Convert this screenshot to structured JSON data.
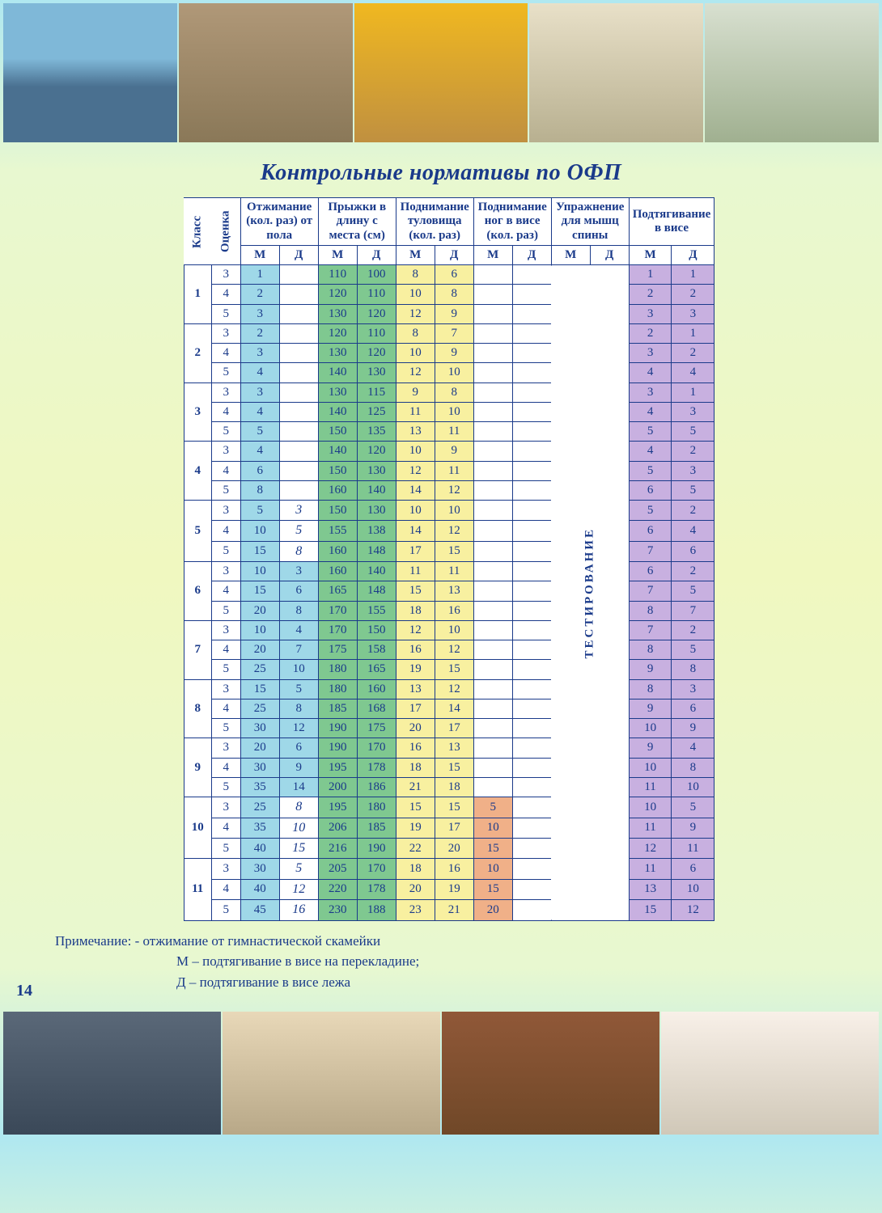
{
  "title": "Контрольные нормативы по ОФП",
  "page_number": "14",
  "headers": {
    "class": "Класс",
    "grade": "Оценка",
    "pushups": "Отжимание (кол. раз) от пола",
    "longjump": "Прыжки в длину с места (см)",
    "situps": "Поднимание туловища (кол. раз)",
    "legraise": "Поднимание ног в висе (кол. раз)",
    "back": "Упражнение для мышц спины",
    "pullups": "Подтягивание в висе",
    "m": "М",
    "d": "Д",
    "testing": "ТЕСТИРОВАНИЕ"
  },
  "note": {
    "line1": "Примечание: - отжимание от гимнастической скамейки",
    "line2": "М – подтягивание в висе на перекладине;",
    "line3": "Д – подтягивание в висе лежа"
  },
  "colors": {
    "border": "#1a3a8a",
    "blue": "#9fd8e8",
    "green": "#7fc890",
    "yellow": "#f8f0a0",
    "orange": "#f0b088",
    "purple": "#c8b0e0"
  },
  "classes": [
    {
      "class": "1",
      "rows": [
        {
          "g": "3",
          "pu_m": "1",
          "pu_d": "",
          "lj_m": "110",
          "lj_d": "100",
          "su_m": "8",
          "su_d": "6",
          "lr_m": "",
          "lr_d": "",
          "pl_m": "1",
          "pl_d": "1"
        },
        {
          "g": "4",
          "pu_m": "2",
          "pu_d": "",
          "lj_m": "120",
          "lj_d": "110",
          "su_m": "10",
          "su_d": "8",
          "lr_m": "",
          "lr_d": "",
          "pl_m": "2",
          "pl_d": "2"
        },
        {
          "g": "5",
          "pu_m": "3",
          "pu_d": "",
          "lj_m": "130",
          "lj_d": "120",
          "su_m": "12",
          "su_d": "9",
          "lr_m": "",
          "lr_d": "",
          "pl_m": "3",
          "pl_d": "3"
        }
      ]
    },
    {
      "class": "2",
      "rows": [
        {
          "g": "3",
          "pu_m": "2",
          "pu_d": "",
          "lj_m": "120",
          "lj_d": "110",
          "su_m": "8",
          "su_d": "7",
          "lr_m": "",
          "lr_d": "",
          "pl_m": "2",
          "pl_d": "1"
        },
        {
          "g": "4",
          "pu_m": "3",
          "pu_d": "",
          "lj_m": "130",
          "lj_d": "120",
          "su_m": "10",
          "su_d": "9",
          "lr_m": "",
          "lr_d": "",
          "pl_m": "3",
          "pl_d": "2"
        },
        {
          "g": "5",
          "pu_m": "4",
          "pu_d": "",
          "lj_m": "140",
          "lj_d": "130",
          "su_m": "12",
          "su_d": "10",
          "lr_m": "",
          "lr_d": "",
          "pl_m": "4",
          "pl_d": "4"
        }
      ]
    },
    {
      "class": "3",
      "rows": [
        {
          "g": "3",
          "pu_m": "3",
          "pu_d": "",
          "lj_m": "130",
          "lj_d": "115",
          "su_m": "9",
          "su_d": "8",
          "lr_m": "",
          "lr_d": "",
          "pl_m": "3",
          "pl_d": "1"
        },
        {
          "g": "4",
          "pu_m": "4",
          "pu_d": "",
          "lj_m": "140",
          "lj_d": "125",
          "su_m": "11",
          "su_d": "10",
          "lr_m": "",
          "lr_d": "",
          "pl_m": "4",
          "pl_d": "3"
        },
        {
          "g": "5",
          "pu_m": "5",
          "pu_d": "",
          "lj_m": "150",
          "lj_d": "135",
          "su_m": "13",
          "su_d": "11",
          "lr_m": "",
          "lr_d": "",
          "pl_m": "5",
          "pl_d": "5"
        }
      ]
    },
    {
      "class": "4",
      "rows": [
        {
          "g": "3",
          "pu_m": "4",
          "pu_d": "",
          "lj_m": "140",
          "lj_d": "120",
          "su_m": "10",
          "su_d": "9",
          "lr_m": "",
          "lr_d": "",
          "pl_m": "4",
          "pl_d": "2"
        },
        {
          "g": "4",
          "pu_m": "6",
          "pu_d": "",
          "lj_m": "150",
          "lj_d": "130",
          "su_m": "12",
          "su_d": "11",
          "lr_m": "",
          "lr_d": "",
          "pl_m": "5",
          "pl_d": "3"
        },
        {
          "g": "5",
          "pu_m": "8",
          "pu_d": "",
          "lj_m": "160",
          "lj_d": "140",
          "su_m": "14",
          "su_d": "12",
          "lr_m": "",
          "lr_d": "",
          "pl_m": "6",
          "pl_d": "5"
        }
      ]
    },
    {
      "class": "5",
      "rows": [
        {
          "g": "3",
          "pu_m": "5",
          "pu_d": "3",
          "pu_d_hand": true,
          "lj_m": "150",
          "lj_d": "130",
          "su_m": "10",
          "su_d": "10",
          "lr_m": "",
          "lr_d": "",
          "pl_m": "5",
          "pl_d": "2"
        },
        {
          "g": "4",
          "pu_m": "10",
          "pu_d": "5",
          "pu_d_hand": true,
          "lj_m": "155",
          "lj_d": "138",
          "su_m": "14",
          "su_d": "12",
          "lr_m": "",
          "lr_d": "",
          "pl_m": "6",
          "pl_d": "4"
        },
        {
          "g": "5",
          "pu_m": "15",
          "pu_d": "8",
          "pu_d_hand": true,
          "lj_m": "160",
          "lj_d": "148",
          "su_m": "17",
          "su_d": "15",
          "lr_m": "",
          "lr_d": "",
          "pl_m": "7",
          "pl_d": "6"
        }
      ]
    },
    {
      "class": "6",
      "rows": [
        {
          "g": "3",
          "pu_m": "10",
          "pu_d": "3",
          "lj_m": "160",
          "lj_d": "140",
          "su_m": "11",
          "su_d": "11",
          "lr_m": "",
          "lr_d": "",
          "pl_m": "6",
          "pl_d": "2"
        },
        {
          "g": "4",
          "pu_m": "15",
          "pu_d": "6",
          "lj_m": "165",
          "lj_d": "148",
          "su_m": "15",
          "su_d": "13",
          "lr_m": "",
          "lr_d": "",
          "pl_m": "7",
          "pl_d": "5"
        },
        {
          "g": "5",
          "pu_m": "20",
          "pu_d": "8",
          "lj_m": "170",
          "lj_d": "155",
          "su_m": "18",
          "su_d": "16",
          "lr_m": "",
          "lr_d": "",
          "pl_m": "8",
          "pl_d": "7"
        }
      ]
    },
    {
      "class": "7",
      "rows": [
        {
          "g": "3",
          "pu_m": "10",
          "pu_d": "4",
          "lj_m": "170",
          "lj_d": "150",
          "su_m": "12",
          "su_d": "10",
          "lr_m": "",
          "lr_d": "",
          "pl_m": "7",
          "pl_d": "2"
        },
        {
          "g": "4",
          "pu_m": "20",
          "pu_d": "7",
          "lj_m": "175",
          "lj_d": "158",
          "su_m": "16",
          "su_d": "12",
          "lr_m": "",
          "lr_d": "",
          "pl_m": "8",
          "pl_d": "5"
        },
        {
          "g": "5",
          "pu_m": "25",
          "pu_d": "10",
          "lj_m": "180",
          "lj_d": "165",
          "su_m": "19",
          "su_d": "15",
          "lr_m": "",
          "lr_d": "",
          "pl_m": "9",
          "pl_d": "8"
        }
      ]
    },
    {
      "class": "8",
      "rows": [
        {
          "g": "3",
          "pu_m": "15",
          "pu_d": "5",
          "lj_m": "180",
          "lj_d": "160",
          "su_m": "13",
          "su_d": "12",
          "lr_m": "",
          "lr_d": "",
          "pl_m": "8",
          "pl_d": "3"
        },
        {
          "g": "4",
          "pu_m": "25",
          "pu_d": "8",
          "lj_m": "185",
          "lj_d": "168",
          "su_m": "17",
          "su_d": "14",
          "lr_m": "",
          "lr_d": "",
          "pl_m": "9",
          "pl_d": "6"
        },
        {
          "g": "5",
          "pu_m": "30",
          "pu_d": "12",
          "lj_m": "190",
          "lj_d": "175",
          "su_m": "20",
          "su_d": "17",
          "lr_m": "",
          "lr_d": "",
          "pl_m": "10",
          "pl_d": "9"
        }
      ]
    },
    {
      "class": "9",
      "rows": [
        {
          "g": "3",
          "pu_m": "20",
          "pu_d": "6",
          "lj_m": "190",
          "lj_d": "170",
          "su_m": "16",
          "su_d": "13",
          "lr_m": "",
          "lr_d": "",
          "pl_m": "9",
          "pl_d": "4"
        },
        {
          "g": "4",
          "pu_m": "30",
          "pu_d": "9",
          "lj_m": "195",
          "lj_d": "178",
          "su_m": "18",
          "su_d": "15",
          "lr_m": "",
          "lr_d": "",
          "pl_m": "10",
          "pl_d": "8"
        },
        {
          "g": "5",
          "pu_m": "35",
          "pu_d": "14",
          "lj_m": "200",
          "lj_d": "186",
          "su_m": "21",
          "su_d": "18",
          "lr_m": "",
          "lr_d": "",
          "pl_m": "11",
          "pl_d": "10"
        }
      ]
    },
    {
      "class": "10",
      "rows": [
        {
          "g": "3",
          "pu_m": "25",
          "pu_d": "8",
          "pu_d_hand": true,
          "lj_m": "195",
          "lj_d": "180",
          "su_m": "15",
          "su_d": "15",
          "lr_m": "5",
          "lr_d": "",
          "pl_m": "10",
          "pl_d": "5"
        },
        {
          "g": "4",
          "pu_m": "35",
          "pu_d": "10",
          "pu_d_hand": true,
          "lj_m": "206",
          "lj_d": "185",
          "su_m": "19",
          "su_d": "17",
          "lr_m": "10",
          "lr_d": "",
          "pl_m": "11",
          "pl_d": "9"
        },
        {
          "g": "5",
          "pu_m": "40",
          "pu_d": "15",
          "pu_d_hand": true,
          "lj_m": "216",
          "lj_d": "190",
          "su_m": "22",
          "su_d": "20",
          "lr_m": "15",
          "lr_d": "",
          "pl_m": "12",
          "pl_d": "11"
        }
      ]
    },
    {
      "class": "11",
      "rows": [
        {
          "g": "3",
          "pu_m": "30",
          "pu_d": "5",
          "pu_d_hand": true,
          "lj_m": "205",
          "lj_d": "170",
          "su_m": "18",
          "su_d": "16",
          "lr_m": "10",
          "lr_d": "",
          "pl_m": "11",
          "pl_d": "6"
        },
        {
          "g": "4",
          "pu_m": "40",
          "pu_d": "12",
          "pu_d_hand": true,
          "lj_m": "220",
          "lj_d": "178",
          "su_m": "20",
          "su_d": "19",
          "lr_m": "15",
          "lr_d": "",
          "pl_m": "13",
          "pl_d": "10"
        },
        {
          "g": "5",
          "pu_m": "45",
          "pu_d": "16",
          "pu_d_hand": true,
          "lj_m": "230",
          "lj_d": "188",
          "su_m": "23",
          "su_d": "21",
          "lr_m": "20",
          "lr_d": "",
          "pl_m": "15",
          "pl_d": "12"
        }
      ]
    }
  ]
}
